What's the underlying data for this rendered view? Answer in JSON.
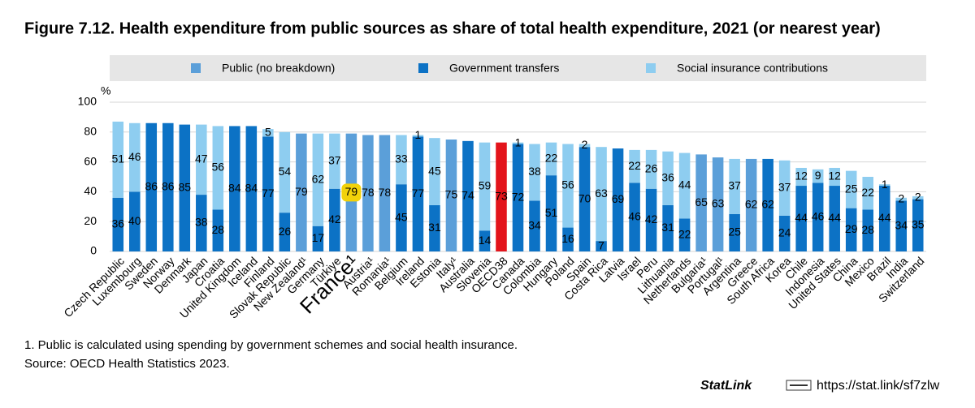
{
  "chart_data": {
    "type": "stacked_bar",
    "title": "Figure 7.12. Health expenditure from public sources as share of total health expenditure, 2021 (or nearest year)",
    "y_label": "%",
    "categories": [
      "Czech Republic",
      "Luxembourg",
      "Sweden",
      "Norway",
      "Denmark",
      "Japan",
      "Croatia",
      "United Kingdom",
      "Iceland",
      "Finland",
      "Slovak Republic",
      "New Zealand¹",
      "Germany",
      "Türkiye",
      "France¹",
      "Austria¹",
      "Romania¹",
      "Belgium",
      "Ireland",
      "Estonia",
      "Italy¹",
      "Australia",
      "Slovenia",
      "OECD38",
      "Canada",
      "Colombia",
      "Hungary",
      "Poland",
      "Spain",
      "Costa Rica",
      "Latvia",
      "Israel",
      "Peru",
      "Lithuania",
      "Netherlands",
      "Bulgaria¹",
      "Portugal¹",
      "Argentina",
      "Greece",
      "South Africa",
      "Korea",
      "Chile",
      "Indonesia",
      "United States",
      "China",
      "Mexico",
      "Brazil",
      "India",
      "Switzerland"
    ],
    "series": [
      {
        "name": "Public (no breakdown)",
        "color": "#5b9fd9",
        "values": [
          null,
          null,
          null,
          null,
          null,
          null,
          null,
          null,
          null,
          null,
          null,
          79,
          null,
          null,
          79,
          78,
          78,
          null,
          null,
          null,
          75,
          null,
          null,
          73,
          null,
          null,
          null,
          null,
          null,
          null,
          null,
          null,
          null,
          null,
          null,
          65,
          63,
          null,
          62,
          null,
          null,
          null,
          null,
          null,
          null,
          null,
          null,
          null,
          null
        ]
      },
      {
        "name": "Government transfers",
        "color": "#0c72c5",
        "values": [
          36,
          40,
          86,
          86,
          85,
          38,
          28,
          84,
          84,
          77,
          26,
          null,
          17,
          42,
          null,
          null,
          null,
          45,
          77,
          31,
          null,
          74,
          14,
          null,
          72,
          34,
          51,
          16,
          70,
          7,
          69,
          46,
          42,
          31,
          22,
          null,
          null,
          25,
          null,
          62,
          24,
          44,
          46,
          44,
          29,
          28,
          44,
          34,
          35
        ]
      },
      {
        "name": "Social insurance contributions",
        "color": "#8ecdf0",
        "values": [
          51,
          46,
          null,
          null,
          null,
          47,
          56,
          null,
          null,
          5,
          54,
          null,
          62,
          37,
          null,
          null,
          null,
          33,
          1,
          45,
          null,
          null,
          59,
          null,
          1,
          38,
          22,
          56,
          2,
          63,
          null,
          22,
          26,
          36,
          44,
          null,
          null,
          37,
          null,
          null,
          37,
          12,
          9,
          12,
          25,
          22,
          1,
          2,
          2
        ]
      }
    ],
    "highlight": {
      "category": "OECD38",
      "color": "#e3141b"
    },
    "emphasis": {
      "category": "France¹",
      "color": "#f2d20a"
    },
    "ylim": [
      0,
      100
    ],
    "yticks": [
      0,
      20,
      40,
      60,
      80,
      100
    ],
    "grid": true
  },
  "footnotes": [
    "1. Public is calculated using spending by government schemes and social health insurance.",
    "Source: OECD Health Statistics 2023."
  ],
  "statlink": {
    "brand": "StatLink",
    "url": "https://stat.link/sf7zlw"
  }
}
